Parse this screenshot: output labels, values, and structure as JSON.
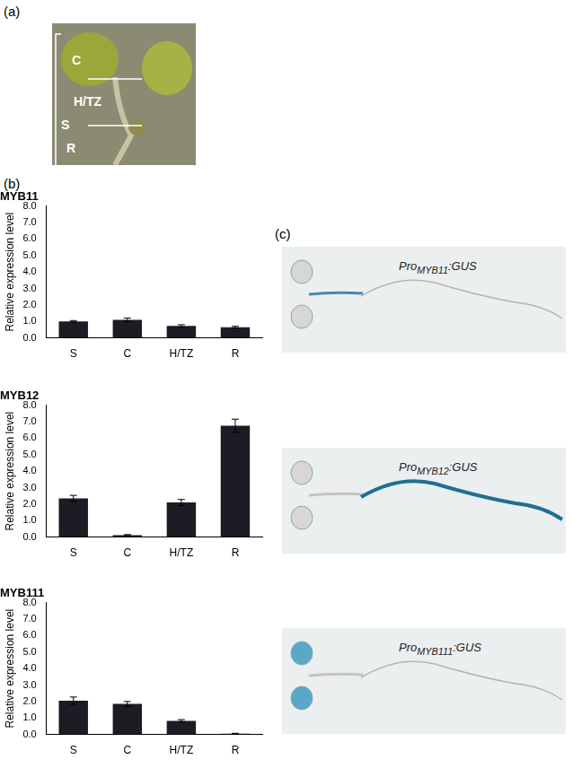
{
  "panel_labels": [
    "(a)",
    "(b)",
    "(c)"
  ],
  "photo_labels": [
    "C",
    "H/TZ",
    "S",
    "R"
  ],
  "gus_labels": [
    {
      "text": "Pro",
      "sub": "MYB11",
      "suffix": ":GUS"
    },
    {
      "text": "Pro",
      "sub": "MYB12",
      "suffix": ":GUS"
    },
    {
      "text": "Pro",
      "sub": "MYB111",
      "suffix": ":GUS"
    }
  ],
  "chart_data": [
    {
      "type": "bar",
      "title": "MYB11",
      "y_label": "Relative expression level",
      "categories": [
        "S",
        "C",
        "H/TZ",
        "R"
      ],
      "values": [
        1.0,
        1.1,
        0.72,
        0.65
      ],
      "errors": [
        0.05,
        0.1,
        0.08,
        0.05
      ],
      "color": "#1c1c24",
      "ylim": [
        0,
        8
      ],
      "grid": false,
      "yticks": [
        {
          "value": 0,
          "label": "0.0"
        },
        {
          "value": 1,
          "label": "1.0"
        },
        {
          "value": 2,
          "label": "2.0"
        },
        {
          "value": 3,
          "label": "3.0"
        },
        {
          "value": 4,
          "label": "4.0"
        },
        {
          "value": 5,
          "label": "5.0"
        },
        {
          "value": 6,
          "label": "6.0"
        },
        {
          "value": 7,
          "label": "7.0"
        },
        {
          "value": 8,
          "label": "8.0"
        }
      ]
    },
    {
      "type": "bar",
      "title": "MYB12",
      "y_label": "Relative expression level",
      "categories": [
        "S",
        "C",
        "H/TZ",
        "R"
      ],
      "values": [
        2.35,
        0.12,
        2.1,
        6.75
      ],
      "errors": [
        0.18,
        0.03,
        0.18,
        0.4
      ],
      "color": "#1c1c24",
      "ylim": [
        0,
        8
      ],
      "grid": false,
      "yticks": [
        {
          "value": 0,
          "label": "0.0"
        },
        {
          "value": 1,
          "label": "1.0"
        },
        {
          "value": 2,
          "label": "2.0"
        },
        {
          "value": 3,
          "label": "3.0"
        },
        {
          "value": 4,
          "label": "4.0"
        },
        {
          "value": 5,
          "label": "5.0"
        },
        {
          "value": 6,
          "label": "6.0"
        },
        {
          "value": 7,
          "label": "7.0"
        },
        {
          "value": 8,
          "label": "8.0"
        }
      ]
    },
    {
      "type": "bar",
      "title": "MYB111",
      "y_label": "Relative expression level",
      "categories": [
        "S",
        "C",
        "H/TZ",
        "R"
      ],
      "values": [
        2.05,
        1.85,
        0.82,
        0.05
      ],
      "errors": [
        0.22,
        0.15,
        0.08,
        0.02
      ],
      "color": "#1c1c24",
      "ylim": [
        0,
        8
      ],
      "grid": false,
      "yticks": [
        {
          "value": 0,
          "label": "0.0"
        },
        {
          "value": 1,
          "label": "1.0"
        },
        {
          "value": 2,
          "label": "2.0"
        },
        {
          "value": 3,
          "label": "3.0"
        },
        {
          "value": 4,
          "label": "4.0"
        },
        {
          "value": 5,
          "label": "5.0"
        },
        {
          "value": 6,
          "label": "6.0"
        },
        {
          "value": 7,
          "label": "7.0"
        },
        {
          "value": 8,
          "label": "8.0"
        }
      ]
    }
  ]
}
